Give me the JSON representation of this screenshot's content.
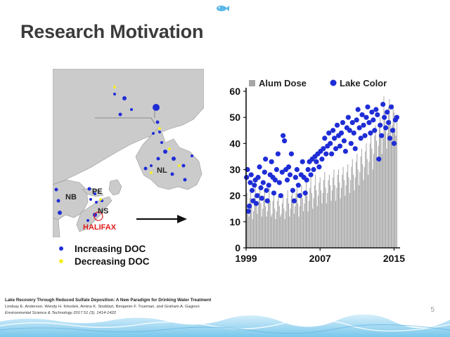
{
  "slide": {
    "title": "Research Motivation",
    "page_number": "5"
  },
  "map": {
    "labels": {
      "nl": "NL",
      "nb": "NB",
      "pe": "PE",
      "ns": "NS",
      "halifax": "HALIFAX"
    },
    "legend": [
      {
        "label": "Increasing DOC",
        "color": "#1f2dd6"
      },
      {
        "label": "Decreasing DOC",
        "color": "#f4ee2a"
      }
    ],
    "colors": {
      "land": "#cbcbcb",
      "water": "#ffffff",
      "halifax_marker": "#e01b1b"
    }
  },
  "reference": {
    "line1": "Lake Recovery Through Reduced Sulfate Deposition: A New Paradigm  for Drinking Water Treatment",
    "line2": "Lindsay E. Anderson, Wendy H. Krkošek, Amina K. Stoddart, Benjamin F. Trueman,  and Graham A. Gagnon",
    "line3": "Environmental Science & Technology 2017 51 (3), 1414-1422"
  },
  "chart_data": {
    "type": "bar",
    "legend": [
      {
        "name": "Alum Dose",
        "marker": "square",
        "color": "#a6a6a6"
      },
      {
        "name": "Lake Color",
        "marker": "circle",
        "color": "#1f2dd6"
      }
    ],
    "legend_position": "top",
    "ylim": [
      0,
      60
    ],
    "yticks": [
      "0",
      "10",
      "20",
      "30",
      "40",
      "50",
      "60"
    ],
    "xticks": [
      "1999",
      "2007",
      "2015"
    ],
    "xlim": [
      1999,
      2015.5
    ],
    "series": [
      {
        "name": "Alum Dose",
        "type": "bar",
        "color": "#a6a6a6",
        "x": [
          1999.0,
          1999.1,
          1999.2,
          1999.3,
          1999.4,
          1999.5,
          1999.6,
          1999.7,
          1999.8,
          1999.9,
          2000.0,
          2000.1,
          2000.2,
          2000.3,
          2000.4,
          2000.5,
          2000.6,
          2000.7,
          2000.8,
          2000.9,
          2001.0,
          2001.1,
          2001.2,
          2001.3,
          2001.4,
          2001.5,
          2001.6,
          2001.7,
          2001.8,
          2001.9,
          2002.0,
          2002.1,
          2002.2,
          2002.3,
          2002.4,
          2002.5,
          2002.6,
          2002.7,
          2002.8,
          2002.9,
          2003.0,
          2003.1,
          2003.2,
          2003.3,
          2003.4,
          2003.5,
          2003.6,
          2003.7,
          2003.8,
          2003.9,
          2004.0,
          2004.1,
          2004.2,
          2004.3,
          2004.4,
          2004.5,
          2004.6,
          2004.7,
          2004.8,
          2004.9,
          2005.0,
          2005.1,
          2005.2,
          2005.3,
          2005.4,
          2005.5,
          2005.6,
          2005.7,
          2005.8,
          2005.9,
          2006.0,
          2006.1,
          2006.2,
          2006.3,
          2006.4,
          2006.5,
          2006.6,
          2006.7,
          2006.8,
          2006.9,
          2007.0,
          2007.1,
          2007.2,
          2007.3,
          2007.4,
          2007.5,
          2007.6,
          2007.7,
          2007.8,
          2007.9,
          2008.0,
          2008.1,
          2008.2,
          2008.3,
          2008.4,
          2008.5,
          2008.6,
          2008.7,
          2008.8,
          2008.9,
          2009.0,
          2009.1,
          2009.2,
          2009.3,
          2009.4,
          2009.5,
          2009.6,
          2009.7,
          2009.8,
          2009.9,
          2010.0,
          2010.1,
          2010.2,
          2010.3,
          2010.4,
          2010.5,
          2010.6,
          2010.7,
          2010.8,
          2010.9,
          2011.0,
          2011.1,
          2011.2,
          2011.3,
          2011.4,
          2011.5,
          2011.6,
          2011.7,
          2011.8,
          2011.9,
          2012.0,
          2012.1,
          2012.2,
          2012.3,
          2012.4,
          2012.5,
          2012.6,
          2012.7,
          2012.8,
          2012.9,
          2013.0,
          2013.1,
          2013.2,
          2013.3,
          2013.4,
          2013.5,
          2013.6,
          2013.7,
          2013.8,
          2013.9,
          2014.0,
          2014.1,
          2014.2,
          2014.3,
          2014.4,
          2014.5,
          2014.6,
          2014.7,
          2014.8,
          2014.9,
          2015.0,
          2015.1,
          2015.2,
          2015.3
        ],
        "values": [
          18,
          21,
          15,
          12,
          19,
          22,
          17,
          11,
          14,
          20,
          23,
          18,
          13,
          16,
          21,
          24,
          17,
          12,
          15,
          20,
          22,
          16,
          12,
          14,
          19,
          23,
          18,
          12,
          13,
          18,
          21,
          15,
          11,
          14,
          18,
          20,
          16,
          12,
          13,
          17,
          20,
          15,
          11,
          14,
          19,
          22,
          17,
          12,
          15,
          20,
          22,
          18,
          13,
          16,
          21,
          23,
          17,
          12,
          16,
          21,
          24,
          19,
          14,
          17,
          22,
          26,
          20,
          14,
          18,
          23,
          27,
          21,
          15,
          19,
          24,
          28,
          22,
          16,
          20,
          25,
          27,
          22,
          17,
          21,
          26,
          29,
          23,
          17,
          21,
          26,
          28,
          24,
          18,
          22,
          27,
          30,
          24,
          18,
          23,
          28,
          30,
          25,
          19,
          23,
          28,
          31,
          26,
          20,
          24,
          29,
          32,
          27,
          21,
          26,
          31,
          34,
          28,
          22,
          27,
          33,
          36,
          30,
          24,
          29,
          35,
          38,
          32,
          26,
          31,
          37,
          40,
          34,
          28,
          33,
          40,
          44,
          38,
          30,
          36,
          43,
          47,
          41,
          33,
          39,
          46,
          50,
          44,
          36,
          42,
          58,
          52,
          45,
          38,
          44,
          54,
          57,
          49,
          41,
          47,
          55,
          52,
          46,
          43,
          48
        ]
      },
      {
        "name": "Lake Color",
        "type": "scatter",
        "color": "#1f2dd6",
        "x": [
          1999.05,
          1999.15,
          1999.25,
          1999.35,
          1999.45,
          1999.55,
          1999.65,
          1999.75,
          1999.9,
          2000.0,
          2000.1,
          2000.2,
          2000.3,
          2000.45,
          2000.6,
          2000.7,
          2000.85,
          2001.0,
          2001.1,
          2001.2,
          2001.3,
          2001.45,
          2001.6,
          2001.75,
          2001.9,
          2002.0,
          2002.15,
          2002.3,
          2002.45,
          2002.6,
          2002.75,
          2002.9,
          2003.0,
          2003.15,
          2003.3,
          2003.45,
          2003.6,
          2003.75,
          2003.9,
          2004.05,
          2004.2,
          2004.35,
          2004.5,
          2004.65,
          2004.8,
          2004.95,
          2005.1,
          2005.25,
          2005.4,
          2005.55,
          2005.7,
          2005.85,
          2006.0,
          2006.15,
          2006.3,
          2006.45,
          2006.6,
          2006.75,
          2006.9,
          2007.05,
          2007.2,
          2007.35,
          2007.5,
          2007.65,
          2007.8,
          2007.95,
          2008.1,
          2008.25,
          2008.4,
          2008.55,
          2008.7,
          2008.85,
          2009.0,
          2009.15,
          2009.3,
          2009.45,
          2009.6,
          2009.75,
          2009.9,
          2010.05,
          2010.2,
          2010.35,
          2010.5,
          2010.65,
          2010.8,
          2010.95,
          2011.1,
          2011.25,
          2011.4,
          2011.55,
          2011.7,
          2011.85,
          2012.0,
          2012.15,
          2012.3,
          2012.45,
          2012.6,
          2012.75,
          2012.9,
          2013.05,
          2013.2,
          2013.35,
          2013.5,
          2013.65,
          2013.8,
          2013.95,
          2014.1,
          2014.25,
          2014.4,
          2014.55,
          2014.7,
          2014.85,
          2015.0,
          2015.15,
          2015.3
        ],
        "values": [
          27,
          30,
          14,
          16,
          25,
          28,
          22,
          18,
          24,
          26,
          17,
          20,
          27,
          31,
          23,
          19,
          25,
          29,
          34,
          22,
          18,
          24,
          28,
          33,
          27,
          21,
          26,
          30,
          36,
          25,
          20,
          29,
          43,
          41,
          30,
          26,
          31,
          28,
          36,
          22,
          18,
          27,
          30,
          24,
          20,
          28,
          33,
          27,
          21,
          26,
          30,
          33,
          28,
          34,
          30,
          35,
          33,
          36,
          31,
          37,
          34,
          38,
          42,
          36,
          39,
          44,
          40,
          36,
          45,
          42,
          38,
          47,
          43,
          39,
          44,
          48,
          41,
          37,
          46,
          50,
          45,
          40,
          48,
          44,
          38,
          49,
          53,
          46,
          42,
          51,
          47,
          43,
          50,
          54,
          48,
          44,
          52,
          49,
          45,
          53,
          51,
          34,
          47,
          43,
          55,
          50,
          46,
          52,
          48,
          42,
          54,
          45,
          40,
          49,
          50
        ]
      }
    ]
  }
}
